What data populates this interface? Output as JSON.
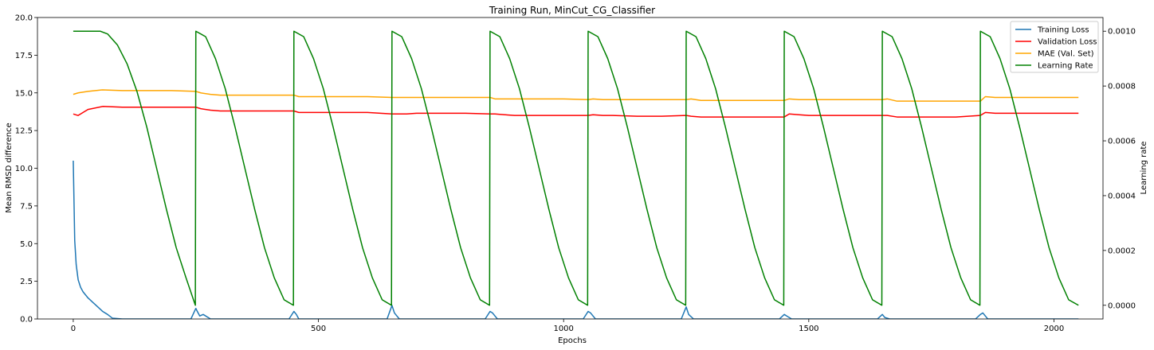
{
  "chart_data": {
    "type": "line",
    "title": "Training Run, MinCut_CG_Classifier",
    "xlabel": "Epochs",
    "ylabel": "Mean RMSD difference",
    "y2label": "Learning rate",
    "xlim": [
      -73,
      2100
    ],
    "ylim": [
      0,
      20
    ],
    "y2lim": [
      -5e-05,
      0.00105
    ],
    "xticks": [
      0,
      500,
      1000,
      1500,
      2000
    ],
    "xtick_labels": [
      "0",
      "500",
      "1000",
      "1500",
      "2000"
    ],
    "yticks": [
      0,
      2.5,
      5,
      7.5,
      10,
      12.5,
      15,
      17.5,
      20
    ],
    "ytick_labels": [
      "0.0",
      "2.5",
      "5.0",
      "7.5",
      "10.0",
      "12.5",
      "15.0",
      "17.5",
      "20.0"
    ],
    "y2ticks": [
      0,
      0.0002,
      0.0004,
      0.0006,
      0.0008,
      0.001
    ],
    "y2tick_labels": [
      "0.0000",
      "0.0002",
      "0.0004",
      "0.0006",
      "0.0008",
      "0.0010"
    ],
    "grid": false,
    "legend_position": "top-right",
    "total_epochs": 2050,
    "restart_epochs": [
      0,
      250,
      450,
      650,
      850,
      1050,
      1250,
      1450,
      1650,
      1850
    ],
    "series": [
      {
        "name": "Training Loss",
        "color": "#1f77b4",
        "axis": "left",
        "x": [
          0,
          3,
          6,
          10,
          15,
          20,
          30,
          40,
          50,
          60,
          70,
          80,
          100,
          150,
          240,
          250,
          253,
          258,
          265,
          280,
          440,
          450,
          455,
          460,
          640,
          650,
          655,
          665,
          840,
          850,
          855,
          865,
          1040,
          1050,
          1055,
          1065,
          1240,
          1250,
          1255,
          1265,
          1440,
          1450,
          1455,
          1465,
          1640,
          1650,
          1655,
          1665,
          1840,
          1850,
          1855,
          1865,
          2050
        ],
        "values": [
          10.5,
          5.2,
          3.6,
          2.6,
          2.1,
          1.8,
          1.4,
          1.1,
          0.8,
          0.5,
          0.3,
          0.05,
          0.0,
          0.0,
          0.0,
          0.7,
          0.5,
          0.2,
          0.3,
          0.0,
          0.0,
          0.5,
          0.3,
          0.0,
          0.0,
          0.9,
          0.4,
          0.0,
          0.0,
          0.5,
          0.4,
          0.0,
          0.0,
          0.5,
          0.4,
          0.0,
          0.0,
          0.8,
          0.3,
          0.0,
          0.0,
          0.3,
          0.2,
          0.0,
          0.0,
          0.3,
          0.1,
          0.0,
          0.0,
          0.3,
          0.4,
          0.0,
          0.0
        ]
      },
      {
        "name": "Validation Loss",
        "color": "#ff0000",
        "axis": "left",
        "x": [
          0,
          10,
          30,
          60,
          100,
          150,
          200,
          250,
          260,
          280,
          300,
          350,
          400,
          450,
          460,
          480,
          500,
          550,
          600,
          650,
          660,
          680,
          700,
          750,
          800,
          850,
          860,
          880,
          900,
          950,
          1000,
          1050,
          1060,
          1080,
          1100,
          1150,
          1200,
          1250,
          1260,
          1280,
          1300,
          1350,
          1400,
          1450,
          1460,
          1480,
          1500,
          1550,
          1600,
          1650,
          1660,
          1680,
          1700,
          1750,
          1800,
          1850,
          1860,
          1880,
          1900,
          1950,
          2000,
          2050
        ],
        "values": [
          13.6,
          13.5,
          13.9,
          14.1,
          14.05,
          14.05,
          14.05,
          14.05,
          13.95,
          13.85,
          13.8,
          13.8,
          13.8,
          13.8,
          13.7,
          13.7,
          13.7,
          13.7,
          13.7,
          13.6,
          13.6,
          13.6,
          13.65,
          13.65,
          13.65,
          13.6,
          13.6,
          13.55,
          13.5,
          13.5,
          13.5,
          13.5,
          13.55,
          13.5,
          13.5,
          13.45,
          13.45,
          13.5,
          13.45,
          13.4,
          13.4,
          13.4,
          13.4,
          13.4,
          13.6,
          13.55,
          13.5,
          13.5,
          13.5,
          13.5,
          13.5,
          13.4,
          13.4,
          13.4,
          13.4,
          13.5,
          13.7,
          13.65,
          13.65,
          13.65,
          13.65,
          13.65
        ]
      },
      {
        "name": "MAE (Val. Set)",
        "color": "#ffa500",
        "axis": "left",
        "x": [
          0,
          10,
          30,
          60,
          100,
          150,
          200,
          250,
          260,
          280,
          300,
          350,
          400,
          450,
          460,
          480,
          500,
          550,
          600,
          650,
          660,
          680,
          700,
          750,
          800,
          850,
          860,
          880,
          900,
          950,
          1000,
          1050,
          1060,
          1080,
          1100,
          1150,
          1200,
          1250,
          1260,
          1280,
          1300,
          1350,
          1400,
          1450,
          1460,
          1480,
          1500,
          1550,
          1600,
          1650,
          1660,
          1680,
          1700,
          1750,
          1800,
          1850,
          1860,
          1880,
          1900,
          1950,
          2000,
          2050
        ],
        "values": [
          14.9,
          15.0,
          15.1,
          15.2,
          15.15,
          15.15,
          15.15,
          15.1,
          15.0,
          14.9,
          14.85,
          14.85,
          14.85,
          14.85,
          14.75,
          14.75,
          14.75,
          14.75,
          14.75,
          14.7,
          14.7,
          14.7,
          14.7,
          14.7,
          14.7,
          14.7,
          14.6,
          14.6,
          14.6,
          14.6,
          14.6,
          14.55,
          14.6,
          14.55,
          14.55,
          14.55,
          14.55,
          14.55,
          14.6,
          14.5,
          14.5,
          14.5,
          14.5,
          14.5,
          14.6,
          14.55,
          14.55,
          14.55,
          14.55,
          14.55,
          14.6,
          14.45,
          14.45,
          14.45,
          14.45,
          14.45,
          14.75,
          14.7,
          14.7,
          14.7,
          14.7,
          14.7
        ]
      },
      {
        "name": "Learning Rate",
        "color": "#008000",
        "axis": "right",
        "x": [
          0,
          55,
          70,
          90,
          110,
          130,
          150,
          170,
          190,
          210,
          230,
          249,
          250,
          270,
          290,
          310,
          330,
          350,
          370,
          390,
          410,
          430,
          449,
          450,
          470,
          490,
          510,
          530,
          550,
          570,
          590,
          610,
          630,
          649,
          650,
          670,
          690,
          710,
          730,
          750,
          770,
          790,
          810,
          830,
          849,
          850,
          870,
          890,
          910,
          930,
          950,
          970,
          990,
          1010,
          1030,
          1049,
          1050,
          1070,
          1090,
          1110,
          1130,
          1150,
          1170,
          1190,
          1210,
          1230,
          1249,
          1250,
          1270,
          1290,
          1310,
          1330,
          1350,
          1370,
          1390,
          1410,
          1430,
          1449,
          1450,
          1470,
          1490,
          1510,
          1530,
          1550,
          1570,
          1590,
          1610,
          1630,
          1649,
          1650,
          1670,
          1690,
          1710,
          1730,
          1750,
          1770,
          1790,
          1810,
          1830,
          1849,
          1850,
          1870,
          1890,
          1910,
          1930,
          1950,
          1970,
          1990,
          2010,
          2030,
          2050
        ],
        "values": [
          0.001,
          0.001,
          0.00099,
          0.00095,
          0.00088,
          0.00078,
          0.00065,
          0.0005,
          0.00035,
          0.00021,
          0.0001,
          0.0,
          0.001,
          0.00098,
          0.0009,
          0.00079,
          0.00065,
          0.0005,
          0.00035,
          0.00021,
          0.0001,
          2e-05,
          0.0,
          0.001,
          0.00098,
          0.0009,
          0.00079,
          0.00065,
          0.0005,
          0.00035,
          0.00021,
          0.0001,
          2e-05,
          0.0,
          0.001,
          0.00098,
          0.0009,
          0.00079,
          0.00065,
          0.0005,
          0.00035,
          0.00021,
          0.0001,
          2e-05,
          0.0,
          0.001,
          0.00098,
          0.0009,
          0.00079,
          0.00065,
          0.0005,
          0.00035,
          0.00021,
          0.0001,
          2e-05,
          0.0,
          0.001,
          0.00098,
          0.0009,
          0.00079,
          0.00065,
          0.0005,
          0.00035,
          0.00021,
          0.0001,
          2e-05,
          0.0,
          0.001,
          0.00098,
          0.0009,
          0.00079,
          0.00065,
          0.0005,
          0.00035,
          0.00021,
          0.0001,
          2e-05,
          0.0,
          0.001,
          0.00098,
          0.0009,
          0.00079,
          0.00065,
          0.0005,
          0.00035,
          0.00021,
          0.0001,
          2e-05,
          0.0,
          0.001,
          0.00098,
          0.0009,
          0.00079,
          0.00065,
          0.0005,
          0.00035,
          0.00021,
          0.0001,
          2e-05,
          0.0,
          0.001,
          0.00098,
          0.0009,
          0.00079,
          0.00065,
          0.0005,
          0.00035,
          0.00021,
          0.0001,
          2e-05,
          0.0
        ]
      }
    ]
  }
}
